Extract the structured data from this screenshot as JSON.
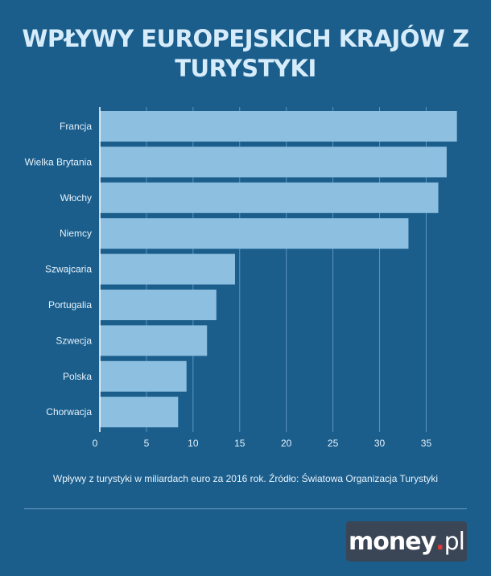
{
  "chart_data": {
    "type": "bar",
    "orientation": "horizontal",
    "title": "WPŁYWY EUROPEJSKICH KRAJÓW Z TURYSTYKI",
    "categories": [
      "Francja",
      "Wielka Brytania",
      "Włochy",
      "Niemcy",
      "Szwajcaria",
      "Portugalia",
      "Szwecja",
      "Polska",
      "Chorwacja"
    ],
    "values": [
      38.3,
      37.2,
      36.3,
      33.1,
      14.5,
      12.5,
      11.5,
      9.3,
      8.4
    ],
    "xticks": [
      0,
      5,
      10,
      15,
      20,
      25,
      30,
      35
    ],
    "xlim": [
      0,
      38.5
    ],
    "grid": true,
    "colors": {
      "background": "#1b5e8c",
      "bar": "#8dbfe0",
      "grid": "#5d94bf",
      "text": "#e6f2fb"
    }
  },
  "caption": "Wpływy z turystyki w miliardach euro za 2016 rok. Źródło: Światowa Organizacja Turystyki",
  "logo": {
    "word": "money",
    "dot": ".",
    "tld": "pl"
  }
}
